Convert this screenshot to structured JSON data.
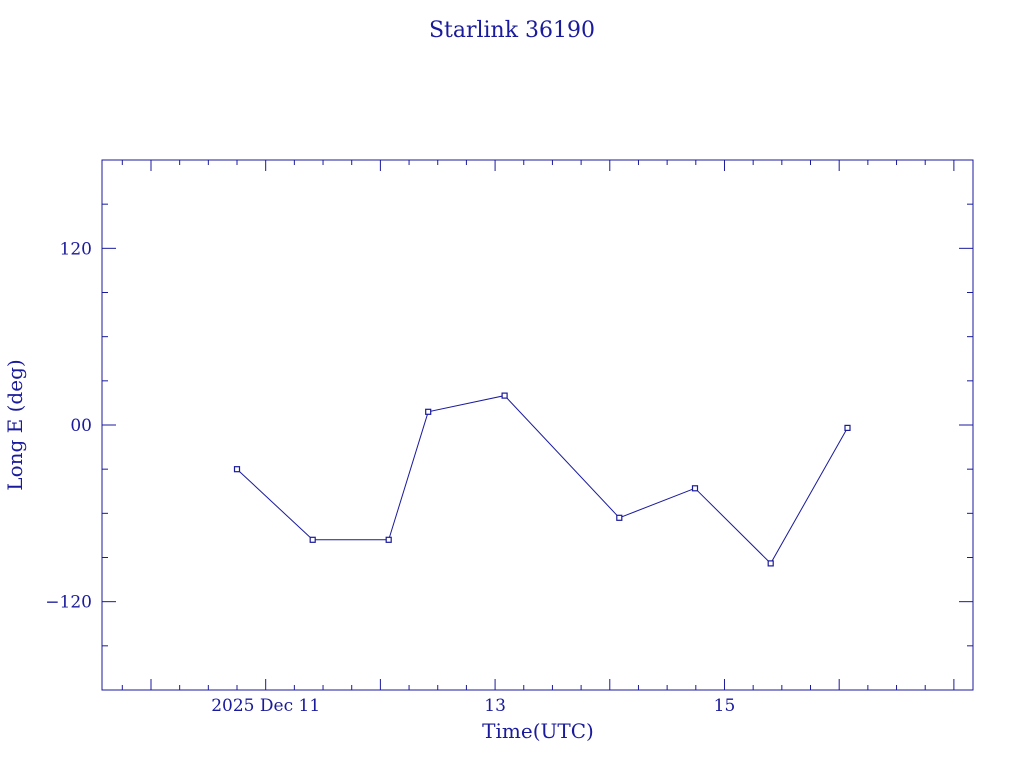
{
  "chart_data": {
    "type": "line",
    "title": "Starlink 36190",
    "xlabel": "Time(UTC)",
    "ylabel": "Long E (deg)",
    "color": "#1a1a9c",
    "grid": false,
    "legend": "none",
    "xlim": [
      "2025-12-09T13:45",
      "2025-12-17T04:00"
    ],
    "ylim": [
      -180,
      180
    ],
    "x_tick_labels": [
      {
        "x": "2025-12-11T00:00",
        "label": "2025 Dec 11"
      },
      {
        "x": "2025-12-13T00:00",
        "label": "13"
      },
      {
        "x": "2025-12-15T00:00",
        "label": "15"
      }
    ],
    "y_tick_labels": [
      {
        "y": 120,
        "label": "120"
      },
      {
        "y": 0,
        "label": "00"
      },
      {
        "y": -120,
        "label": "−120"
      }
    ],
    "series": [
      {
        "x": [
          "2025-12-10T18:00",
          "2025-12-11T09:50",
          "2025-12-12T01:45",
          "2025-12-12T10:00",
          "2025-12-13T02:00",
          "2025-12-14T02:00",
          "2025-12-14T17:50",
          "2025-12-15T09:40",
          "2025-12-16T01:45"
        ],
        "y": [
          -30,
          -78,
          -78,
          9,
          20,
          -63,
          -43,
          -94,
          -2
        ]
      }
    ]
  }
}
